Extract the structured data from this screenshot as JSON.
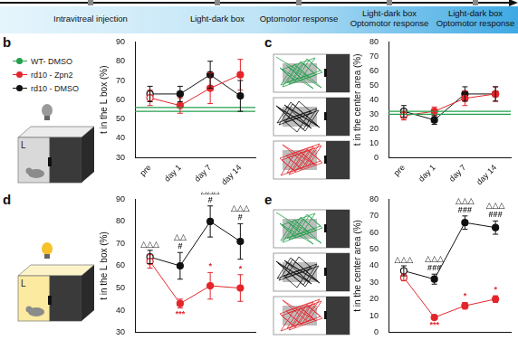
{
  "timeline": {
    "labels": [
      [
        "Intravitreal injection"
      ],
      [
        "Light-dark box"
      ],
      [
        "Optomotor response"
      ],
      [
        "Light-dark box",
        "Optomotor response"
      ],
      [
        "Light-dark box",
        "Optomotor response"
      ]
    ]
  },
  "legend": [
    {
      "name": "WT- DMSO",
      "color": "#22a04b"
    },
    {
      "name": "rd10 - Zpn2",
      "color": "#e3262b"
    },
    {
      "name": "rd10 - DMSO",
      "color": "#111111"
    }
  ],
  "chart_data": [
    {
      "panel": "b",
      "type": "line",
      "box_label": "L",
      "y_label": "t in the L box (%)",
      "categories": [
        "pre",
        "day 1",
        "day 7",
        "day 14"
      ],
      "ylim": [
        30,
        90
      ],
      "yticks": [
        30,
        40,
        50,
        60,
        70,
        80,
        90
      ],
      "grid": false,
      "tick_labels": true,
      "reference_lines": [
        {
          "name": "WT- DMSO",
          "color": "#22a04b",
          "value": 56
        },
        {
          "name": "WT- DMSO",
          "color": "#22a04b",
          "value": 54
        }
      ],
      "series": [
        {
          "name": "rd10 - Zpn2",
          "color": "#e3262b",
          "values": [
            61,
            57,
            66,
            73
          ],
          "errors": [
            4,
            4,
            8,
            8
          ]
        },
        {
          "name": "rd10 - DMSO",
          "color": "#111111",
          "values": [
            63,
            63,
            73,
            62
          ],
          "errors": [
            4,
            4,
            7,
            8
          ]
        }
      ],
      "annotations": []
    },
    {
      "panel": "c",
      "type": "line",
      "y_label": "t in the center area (%)",
      "categories": [
        "pre",
        "day 1",
        "day 7",
        "day 14"
      ],
      "ylim": [
        0,
        80
      ],
      "yticks": [
        0,
        10,
        20,
        30,
        40,
        50,
        60,
        70,
        80
      ],
      "grid": false,
      "tick_labels": true,
      "reference_lines": [
        {
          "name": "WT- DMSO",
          "color": "#22a04b",
          "value": 32
        },
        {
          "name": "WT- DMSO",
          "color": "#22a04b",
          "value": 30
        }
      ],
      "series": [
        {
          "name": "rd10 - Zpn2",
          "color": "#e3262b",
          "values": [
            29,
            32,
            41,
            44
          ],
          "errors": [
            3,
            3,
            5,
            5
          ]
        },
        {
          "name": "rd10 - DMSO",
          "color": "#111111",
          "values": [
            32,
            26,
            44,
            44
          ],
          "errors": [
            4,
            3,
            5,
            5
          ]
        }
      ],
      "annotations": []
    },
    {
      "panel": "d",
      "type": "line",
      "box_label": "L",
      "y_label": "t in the L box (%)",
      "categories": [
        "pre",
        "day 1",
        "day 7",
        "day 14"
      ],
      "ylim": [
        30,
        90
      ],
      "yticks": [
        30,
        40,
        50,
        60,
        70,
        80,
        90
      ],
      "grid": false,
      "tick_labels": "y",
      "reference_lines": [],
      "series": [
        {
          "name": "rd10 - Zpn2",
          "color": "#e3262b",
          "values": [
            62,
            43,
            51,
            50
          ],
          "errors": [
            3,
            2,
            6,
            6
          ]
        },
        {
          "name": "rd10 - DMSO",
          "color": "#111111",
          "values": [
            64,
            60,
            80,
            71
          ],
          "errors": [
            3,
            6,
            7,
            8
          ]
        }
      ],
      "annotations": [
        {
          "series": "rd10 - DMSO",
          "category": "pre",
          "side": "above",
          "lines": [
            "△△△"
          ]
        },
        {
          "series": "rd10 - DMSO",
          "category": "day 1",
          "side": "above",
          "lines": [
            "△△",
            "#"
          ]
        },
        {
          "series": "rd10 - DMSO",
          "category": "day 7",
          "side": "above",
          "lines": [
            "△△△",
            "#"
          ]
        },
        {
          "series": "rd10 - DMSO",
          "category": "day 14",
          "side": "above",
          "lines": [
            "△△△",
            "#"
          ]
        },
        {
          "series": "rd10 - Zpn2",
          "category": "day 1",
          "side": "below",
          "lines": [
            "***"
          ]
        },
        {
          "series": "rd10 - Zpn2",
          "category": "day 7",
          "side": "above",
          "lines": [
            "*"
          ]
        },
        {
          "series": "rd10 - Zpn2",
          "category": "day 14",
          "side": "above",
          "lines": [
            "*"
          ]
        }
      ]
    },
    {
      "panel": "e",
      "type": "line",
      "y_label": "t in the center area (%)",
      "categories": [
        "pre",
        "day 1",
        "day 7",
        "day 14"
      ],
      "ylim": [
        0,
        80
      ],
      "yticks": [
        0,
        10,
        20,
        30,
        40,
        50,
        60,
        70,
        80
      ],
      "grid": false,
      "tick_labels": "y",
      "reference_lines": [],
      "series": [
        {
          "name": "rd10 - Zpn2",
          "color": "#e3262b",
          "values": [
            33,
            9,
            16,
            20
          ],
          "errors": [
            2,
            1,
            2,
            2
          ]
        },
        {
          "name": "rd10 - DMSO",
          "color": "#111111",
          "values": [
            37,
            32,
            66,
            63
          ],
          "errors": [
            3,
            3,
            4,
            4
          ]
        }
      ],
      "annotations": [
        {
          "series": "rd10 - DMSO",
          "category": "pre",
          "side": "above",
          "lines": [
            "△△△"
          ]
        },
        {
          "series": "rd10 - DMSO",
          "category": "day 1",
          "side": "above",
          "lines": [
            "△△△",
            "###"
          ]
        },
        {
          "series": "rd10 - DMSO",
          "category": "day 7",
          "side": "above",
          "lines": [
            "△△△",
            "###"
          ]
        },
        {
          "series": "rd10 - DMSO",
          "category": "day 14",
          "side": "above",
          "lines": [
            "△△△",
            "###"
          ]
        },
        {
          "series": "rd10 - Zpn2",
          "category": "day 1",
          "side": "below",
          "lines": [
            "***"
          ]
        },
        {
          "series": "rd10 - Zpn2",
          "category": "day 7",
          "side": "above",
          "lines": [
            "*"
          ]
        },
        {
          "series": "rd10 - Zpn2",
          "category": "day 14",
          "side": "above",
          "lines": [
            "*"
          ]
        }
      ]
    }
  ]
}
